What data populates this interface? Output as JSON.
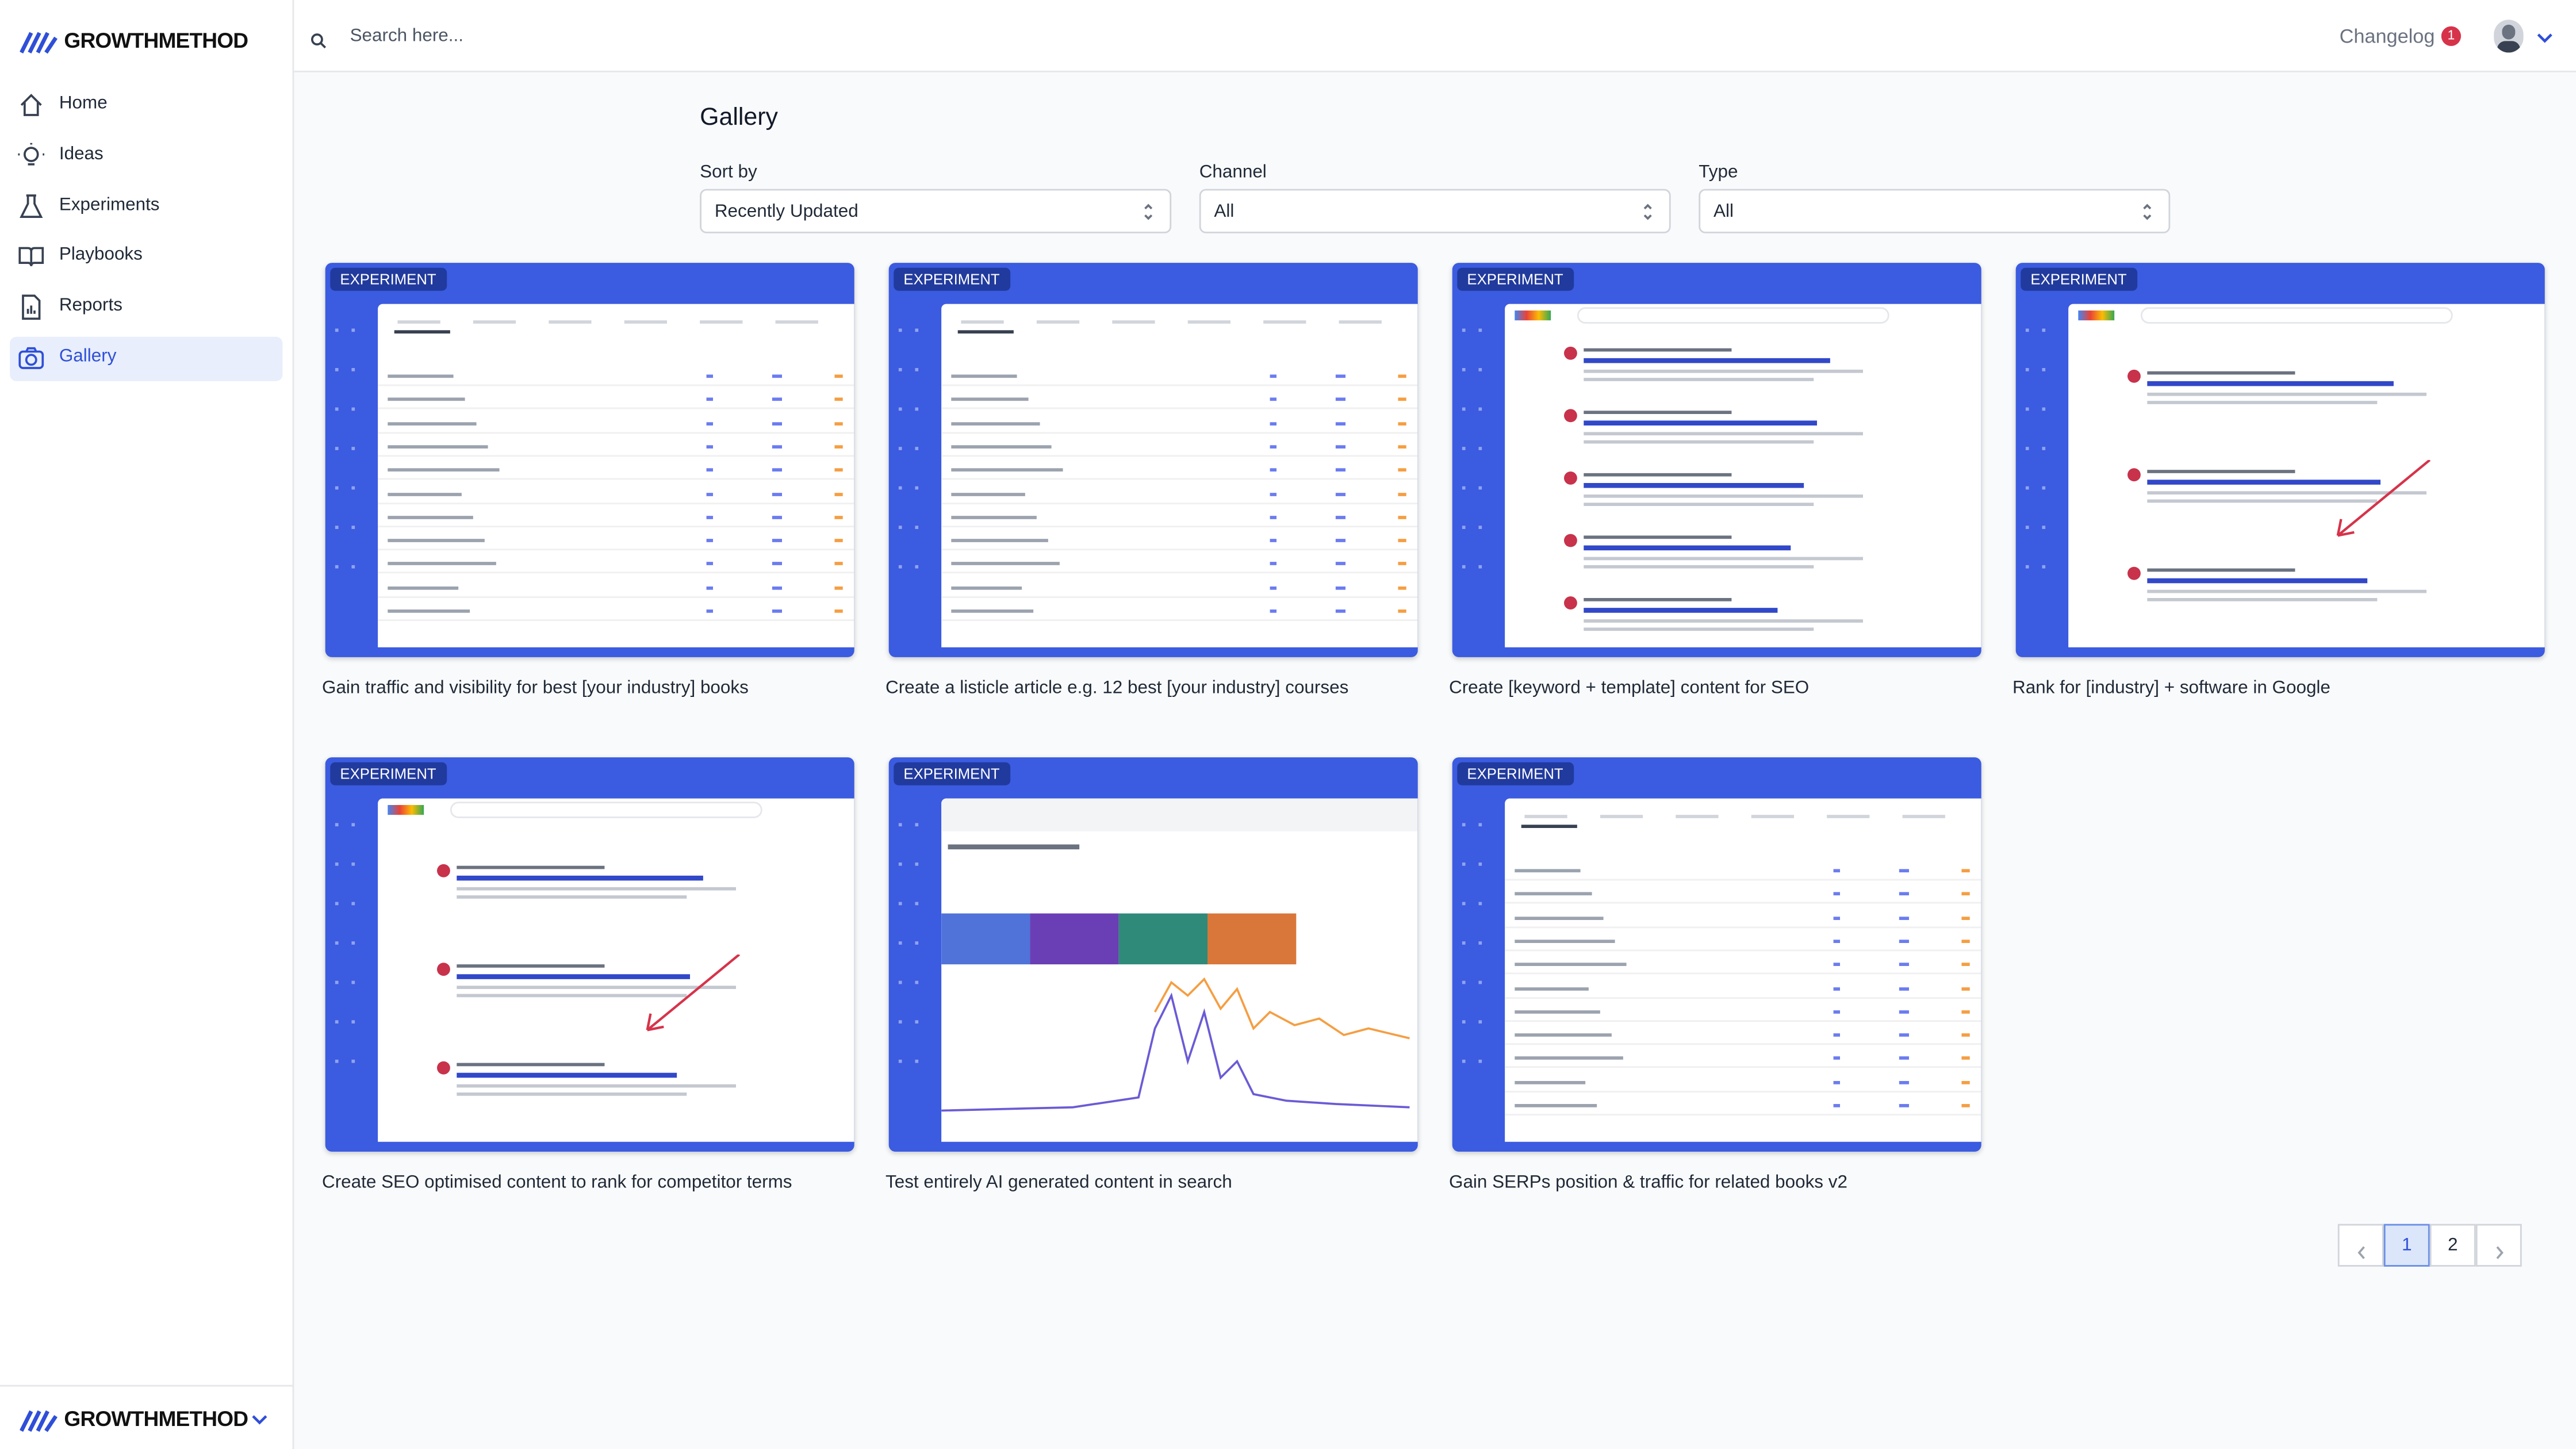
{
  "sidebar": {
    "brand": "GROWTHMETHOD",
    "nav": [
      {
        "label": "Home",
        "active": false
      },
      {
        "label": "Ideas",
        "active": false
      },
      {
        "label": "Experiments",
        "active": false
      },
      {
        "label": "Playbooks",
        "active": false
      },
      {
        "label": "Reports",
        "active": false
      },
      {
        "label": "Gallery",
        "active": true
      }
    ],
    "footer_brand": "GROWTHMETHOD"
  },
  "topbar": {
    "search_placeholder": "Search here...",
    "changelog": "Changelog",
    "changelog_count": "1"
  },
  "page": {
    "title": "Gallery",
    "filters": [
      {
        "label": "Sort by",
        "value": "Recently Updated"
      },
      {
        "label": "Channel",
        "value": "All"
      },
      {
        "label": "Type",
        "value": "All"
      }
    ],
    "cards": [
      {
        "badge": "EXPERIMENT",
        "title": "Gain traffic and visibility for best [your industry] books"
      },
      {
        "badge": "EXPERIMENT",
        "title": "Create a listicle article e.g. 12 best [your industry] courses"
      },
      {
        "badge": "EXPERIMENT",
        "title": "Create [keyword + template] content for SEO"
      },
      {
        "badge": "EXPERIMENT",
        "title": "Rank for [industry] + software in Google"
      },
      {
        "badge": "EXPERIMENT",
        "title": "Create SEO optimised content to rank for competitor terms"
      },
      {
        "badge": "EXPERIMENT",
        "title": "Test entirely AI generated content in search"
      },
      {
        "badge": "EXPERIMENT",
        "title": "Gain SERPs position & traffic for related books v2"
      }
    ],
    "pagination": {
      "pages": [
        "1",
        "2"
      ],
      "current": 0
    }
  }
}
